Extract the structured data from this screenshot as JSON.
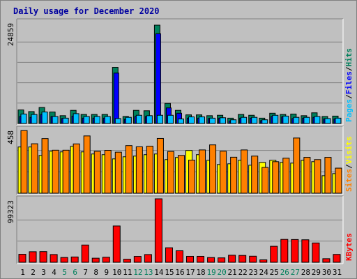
{
  "chart_data": {
    "type": "bar",
    "title": "Daily usage for December 2020",
    "days": [
      "1",
      "2",
      "3",
      "4",
      "5",
      "6",
      "7",
      "8",
      "9",
      "10",
      "11",
      "12",
      "13",
      "14",
      "15",
      "16",
      "17",
      "18",
      "19",
      "20",
      "21",
      "22",
      "23",
      "24",
      "25",
      "26",
      "27",
      "28",
      "29",
      "30",
      "31"
    ],
    "weekend_days": [
      "5",
      "6",
      "12",
      "13",
      "19",
      "20",
      "26",
      "27"
    ],
    "colors": {
      "title": "#0000a0",
      "weekday_label": "#000000",
      "weekend_label": "#00805c",
      "hits": "#00805c",
      "files": "#0000ff",
      "pages": "#00c0ff",
      "visits": "#ffff00",
      "sites": "#ff8000",
      "kbytes": "#ff0000",
      "gridline": "#808080"
    },
    "panels": [
      {
        "name": "hits-files-pages",
        "max_label": "24859",
        "max": 24859,
        "series": [
          {
            "name": "Hits",
            "color": "#00805c",
            "values": [
              3300,
              2900,
              3900,
              2800,
              1900,
              3200,
              2200,
              2200,
              2200,
              13700,
              1700,
              3200,
              3100,
              24000,
              4900,
              3200,
              2100,
              2100,
              1900,
              2000,
              1300,
              2200,
              2000,
              1300,
              2500,
              2200,
              2300,
              1900,
              2600,
              1700,
              1800
            ]
          },
          {
            "name": "Files",
            "color": "#0000ff",
            "values": [
              1700,
              1500,
              2200,
              1700,
              1200,
              1800,
              1300,
              1300,
              1300,
              12300,
              1000,
              1700,
              1700,
              21900,
              3800,
              2500,
              1300,
              1300,
              1200,
              1300,
              600,
              1300,
              1300,
              700,
              1700,
              1600,
              1200,
              1300,
              1500,
              1100,
              1100
            ]
          },
          {
            "name": "Pages",
            "color": "#00c0ff",
            "values": [
              2300,
              2200,
              2800,
              1700,
              1300,
              2400,
              1700,
              1700,
              1700,
              1200,
              1500,
              2000,
              1900,
              2000,
              2000,
              1100,
              1600,
              1600,
              1300,
              1400,
              900,
              1500,
              1500,
              900,
              2000,
              1800,
              1500,
              1500,
              1700,
              1200,
              1300
            ]
          }
        ]
      },
      {
        "name": "visits-sites",
        "max_label": "458",
        "max": 458,
        "series": [
          {
            "name": "Visits",
            "color": "#ffff00",
            "values": [
              330,
              330,
              270,
              300,
              295,
              335,
              295,
              280,
              275,
              245,
              260,
              265,
              275,
              280,
              240,
              255,
              305,
              275,
              235,
              205,
              210,
              235,
              200,
              220,
              235,
              220,
              215,
              235,
              225,
              125,
              140
            ]
          },
          {
            "name": "Sites",
            "color": "#ff8000",
            "values": [
              447,
              353,
              390,
              307,
              307,
              352,
              409,
              299,
              306,
              293,
              340,
              331,
              336,
              391,
              298,
              270,
              236,
              309,
              345,
              300,
              257,
              309,
              265,
              184,
              225,
              250,
              394,
              256,
              240,
              256,
              179
            ]
          }
        ]
      },
      {
        "name": "kbytes",
        "max_label": "99323",
        "max": 99323,
        "series": [
          {
            "name": "KBytes",
            "color": "#ff0000",
            "values": [
              12500,
              16500,
              16700,
              12100,
              7500,
              8300,
              27000,
              6400,
              7900,
              56800,
              4800,
              9200,
              12100,
              99323,
              22700,
              18000,
              9300,
              9300,
              7400,
              6900,
              11000,
              10700,
              9500,
              3800,
              25000,
              35800,
              35600,
              35200,
              30200,
              5600,
              12300
            ]
          }
        ]
      }
    ]
  }
}
